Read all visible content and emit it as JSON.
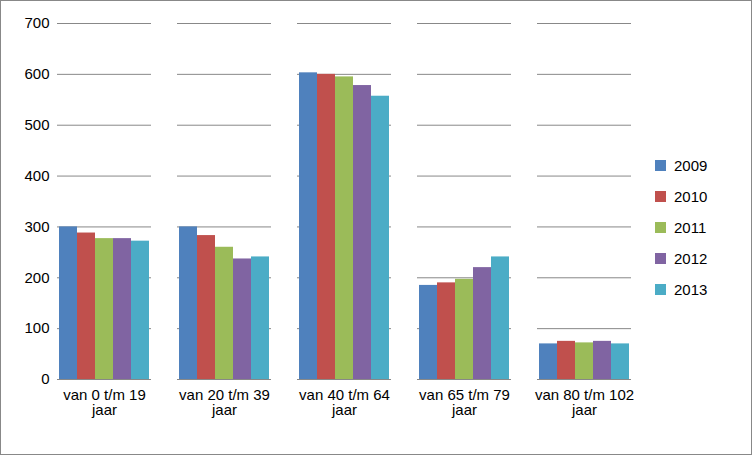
{
  "chart_data": {
    "type": "bar",
    "categories": [
      "van 0 t/m 19 jaar",
      "van 20 t/m 39 jaar",
      "van 40 t/m 64 jaar",
      "van 65 t/m 79 jaar",
      "van 80 t/m 102 jaar"
    ],
    "series": [
      {
        "name": "2009",
        "color": "#4f81bd",
        "values": [
          300,
          300,
          603,
          185,
          70
        ]
      },
      {
        "name": "2010",
        "color": "#c0504d",
        "values": [
          288,
          283,
          600,
          190,
          75
        ]
      },
      {
        "name": "2011",
        "color": "#9bbb59",
        "values": [
          277,
          260,
          595,
          197,
          72
        ]
      },
      {
        "name": "2012",
        "color": "#8064a2",
        "values": [
          277,
          237,
          578,
          220,
          75
        ]
      },
      {
        "name": "2013",
        "color": "#4bacc6",
        "values": [
          272,
          241,
          557,
          241,
          70
        ]
      }
    ],
    "ylim": [
      0,
      700
    ],
    "yticks": [
      0,
      100,
      200,
      300,
      400,
      500,
      600,
      700
    ],
    "grid": true,
    "legend": "right"
  }
}
